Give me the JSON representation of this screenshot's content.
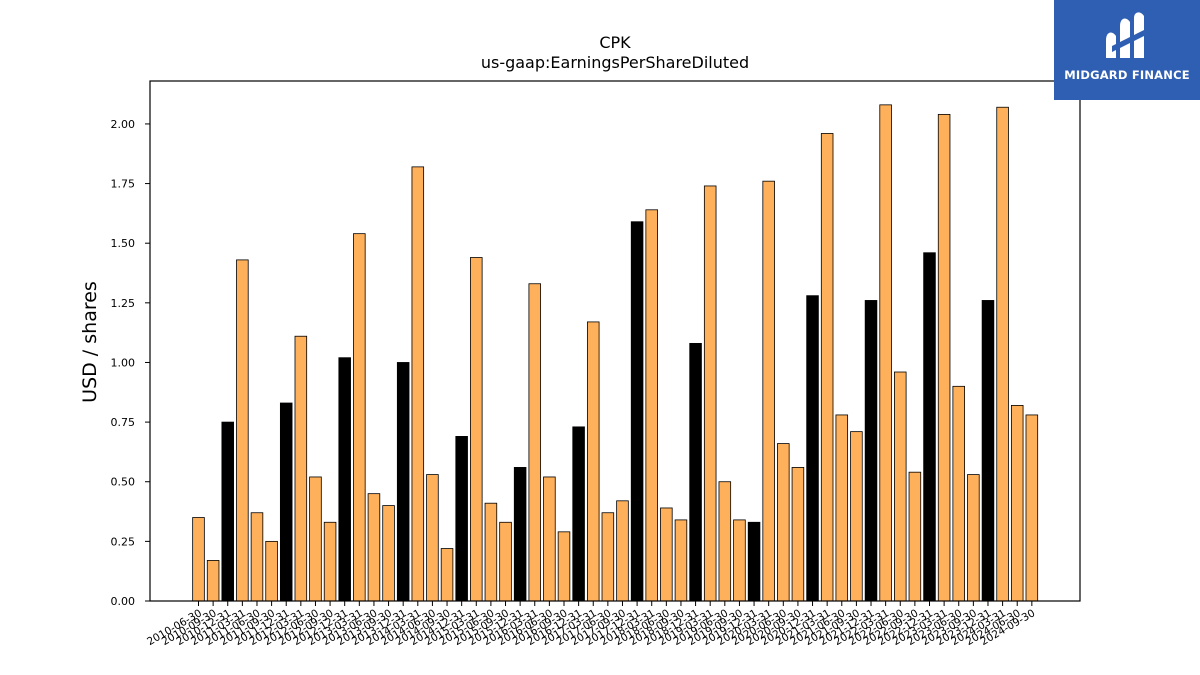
{
  "brand": {
    "name": "MIDGARD FINANCE",
    "icon": "midgard-logo-icon",
    "color": "#2f5fb3"
  },
  "chart_data": {
    "type": "bar",
    "title": "CPK",
    "subtitle": "us-gaap:EarningsPerShareDiluted",
    "xlabel": "",
    "ylabel": "USD / shares",
    "ylim": [
      0,
      2.18
    ],
    "yticks": [
      "0.00",
      "0.25",
      "0.50",
      "0.75",
      "1.00",
      "1.25",
      "1.50",
      "1.75",
      "2.00"
    ],
    "grid": false,
    "colors": {
      "quarter": "#ffb05b",
      "annual": "#000000",
      "edge": "#000000"
    },
    "categories": [
      "2010-06-30",
      "2010-09-30",
      "2010-12-31",
      "2011-03-31",
      "2011-06-30",
      "2011-09-30",
      "2011-12-31",
      "2012-03-31",
      "2012-06-30",
      "2012-09-30",
      "2012-12-31",
      "2013-03-31",
      "2013-06-30",
      "2013-09-30",
      "2013-12-31",
      "2014-03-31",
      "2014-06-30",
      "2014-09-30",
      "2014-12-31",
      "2015-03-31",
      "2015-06-30",
      "2015-09-30",
      "2015-12-31",
      "2016-03-31",
      "2016-06-30",
      "2016-09-30",
      "2016-12-31",
      "2017-03-31",
      "2017-06-30",
      "2017-09-30",
      "2017-12-31",
      "2018-03-31",
      "2018-06-30",
      "2018-09-30",
      "2018-12-31",
      "2019-03-31",
      "2019-06-30",
      "2019-09-30",
      "2019-12-31",
      "2020-03-31",
      "2020-06-30",
      "2020-09-30",
      "2020-12-31",
      "2021-03-31",
      "2021-06-30",
      "2021-09-30",
      "2021-12-31",
      "2022-03-31",
      "2022-06-30",
      "2022-09-30",
      "2022-12-31",
      "2023-03-31",
      "2023-06-30",
      "2023-09-30",
      "2023-12-31",
      "2024-03-31",
      "2024-06-30",
      "2024-09-30"
    ],
    "values": [
      0.35,
      0.17,
      0.75,
      1.43,
      0.37,
      0.25,
      0.83,
      1.11,
      0.52,
      0.33,
      1.02,
      1.54,
      0.45,
      0.4,
      1.0,
      1.82,
      0.53,
      0.22,
      0.69,
      1.44,
      0.41,
      0.33,
      0.56,
      1.33,
      0.52,
      0.29,
      0.73,
      1.17,
      0.37,
      0.42,
      1.59,
      1.64,
      0.39,
      0.34,
      1.08,
      1.74,
      0.5,
      0.34,
      0.33,
      1.76,
      0.66,
      0.56,
      1.28,
      1.96,
      0.78,
      0.71,
      1.26,
      2.08,
      0.96,
      0.54,
      1.46,
      2.04,
      0.9,
      0.53,
      1.26,
      2.07,
      0.82,
      0.78
    ],
    "annual": [
      false,
      false,
      true,
      false,
      false,
      false,
      true,
      false,
      false,
      false,
      true,
      false,
      false,
      false,
      true,
      false,
      false,
      false,
      true,
      false,
      false,
      false,
      true,
      false,
      false,
      false,
      true,
      false,
      false,
      false,
      true,
      false,
      false,
      false,
      true,
      false,
      false,
      false,
      true,
      false,
      false,
      false,
      true,
      false,
      false,
      false,
      true,
      false,
      false,
      false,
      true,
      false,
      false,
      false,
      true,
      false,
      false,
      false
    ]
  }
}
